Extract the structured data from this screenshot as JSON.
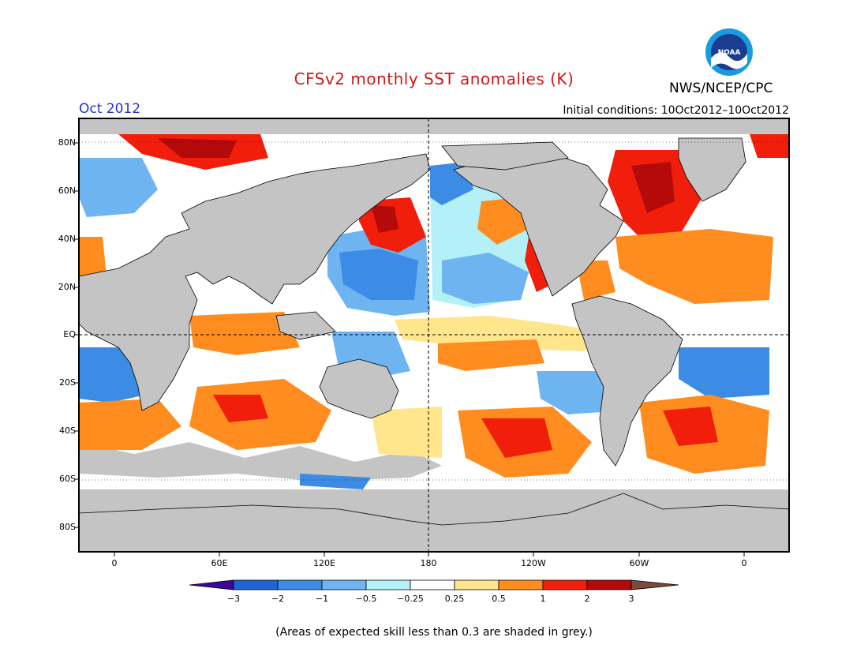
{
  "header": {
    "title": "CFSv2 monthly SST anomalies (K)",
    "agency": "NWS/NCEP/CPC",
    "month": "Oct 2012",
    "initial_conditions": "Initial conditions: 10Oct2012–10Oct2012"
  },
  "logo": {
    "name": "noaa-logo",
    "text": "NOAA"
  },
  "map": {
    "latitude_labels": [
      "80N",
      "60N",
      "40N",
      "20N",
      "EQ",
      "20S",
      "40S",
      "60S",
      "80S"
    ],
    "longitude_labels": [
      "0",
      "60E",
      "120E",
      "180",
      "120W",
      "60W",
      "0"
    ]
  },
  "colorbar": {
    "units": "K",
    "tick_labels": [
      "−3",
      "−2",
      "−1",
      "−0.5",
      "−0.25",
      "0.25",
      "0.5",
      "1",
      "2",
      "3"
    ],
    "colors": [
      "#3a0a96",
      "#1e64d2",
      "#3c8ce6",
      "#6eb4f0",
      "#b4f0f8",
      "#ffffff",
      "#ffe68c",
      "#ff8c1e",
      "#f01e0a",
      "#b40a0a",
      "#7a4a3a"
    ]
  },
  "legend_note": "(Areas of expected skill less than 0.3 are shaded in grey.)",
  "colors": {
    "land": "#c4c4c4",
    "grey_skill": "#c4c4c4",
    "title": "#d01818",
    "month": "#2233cc"
  }
}
